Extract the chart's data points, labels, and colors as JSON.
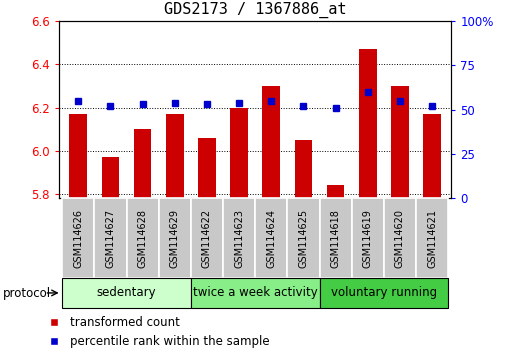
{
  "title": "GDS2173 / 1367886_at",
  "samples": [
    "GSM114626",
    "GSM114627",
    "GSM114628",
    "GSM114629",
    "GSM114622",
    "GSM114623",
    "GSM114624",
    "GSM114625",
    "GSM114618",
    "GSM114619",
    "GSM114620",
    "GSM114621"
  ],
  "transformed_count": [
    6.17,
    5.97,
    6.1,
    6.17,
    6.06,
    6.2,
    6.3,
    6.05,
    5.84,
    6.47,
    6.3,
    6.17
  ],
  "percentile_rank": [
    55,
    52,
    53,
    54,
    53,
    54,
    55,
    52,
    51,
    60,
    55,
    52
  ],
  "ylim": [
    5.78,
    6.6
  ],
  "y2lim": [
    0,
    100
  ],
  "yticks": [
    5.8,
    6.0,
    6.2,
    6.4,
    6.6
  ],
  "y2ticks": [
    0,
    25,
    50,
    75,
    100
  ],
  "bar_color": "#cc0000",
  "dot_color": "#0000cc",
  "bar_bottom": 5.78,
  "groups": [
    {
      "label": "sedentary",
      "start": 0,
      "end": 4,
      "color": "#ccffcc"
    },
    {
      "label": "twice a week activity",
      "start": 4,
      "end": 8,
      "color": "#88ee88"
    },
    {
      "label": "voluntary running",
      "start": 8,
      "end": 12,
      "color": "#44cc44"
    }
  ],
  "protocol_label": "protocol",
  "legend_bar_label": "transformed count",
  "legend_dot_label": "percentile rank within the sample",
  "title_fontsize": 11,
  "tick_fontsize": 8.5,
  "group_label_fontsize": 8.5,
  "sample_fontsize": 7.0,
  "legend_fontsize": 8.5
}
